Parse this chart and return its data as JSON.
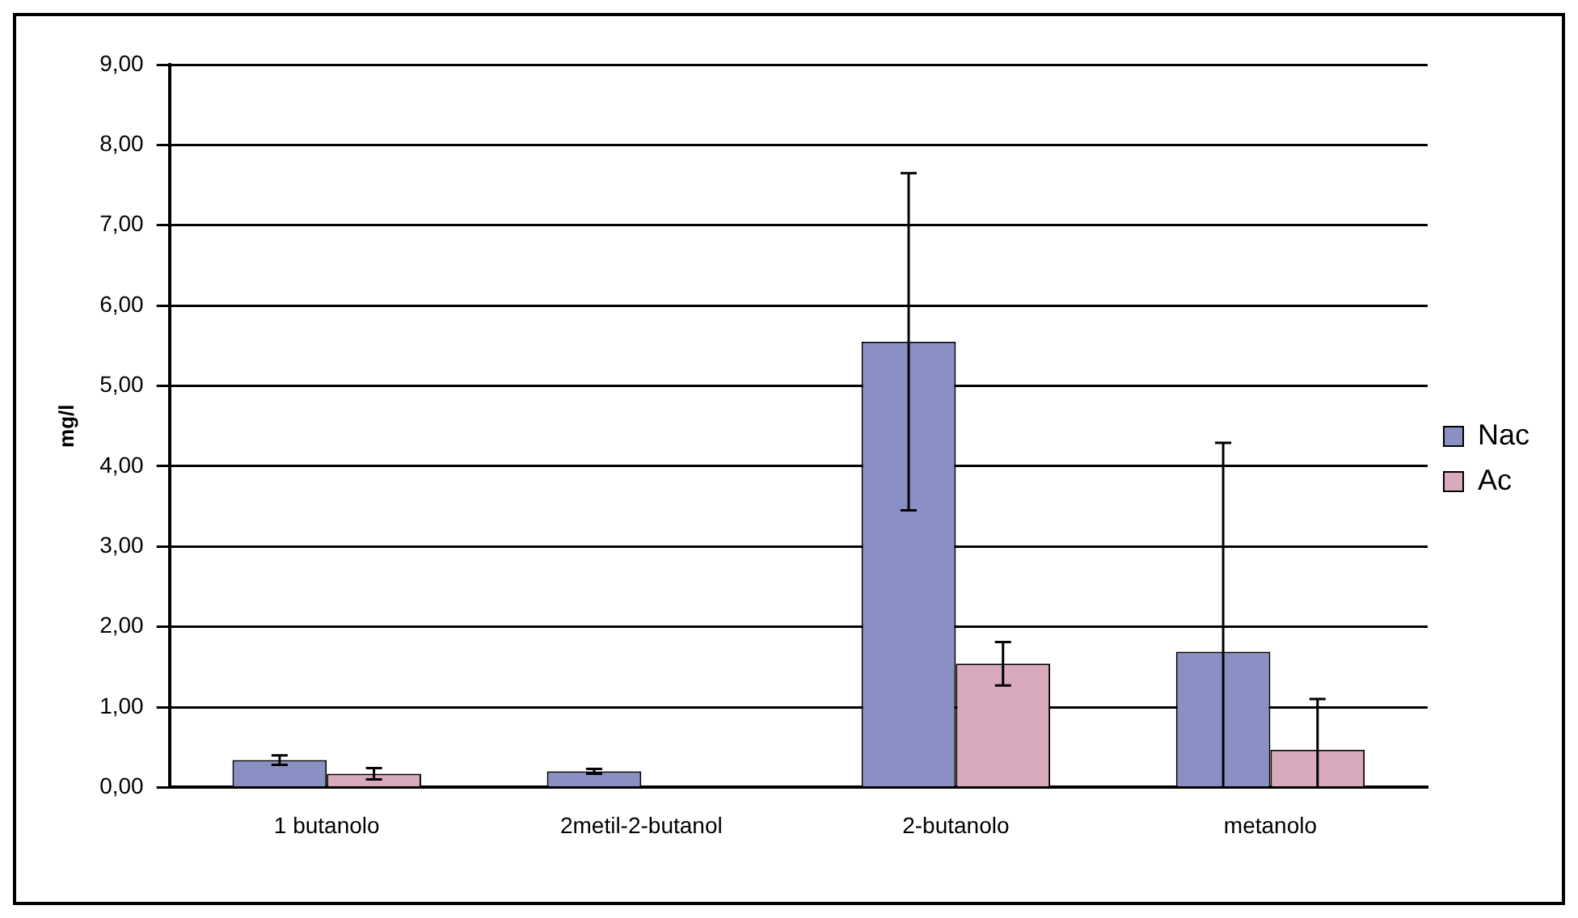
{
  "chart_data": {
    "type": "bar",
    "ylabel": "mg/l",
    "categories": [
      "1 butanolo",
      "2metil-2-butanol",
      "2-butanolo",
      "metanolo"
    ],
    "series": [
      {
        "name": "Nac",
        "color": "#8a8fc4",
        "values": [
          0.34,
          0.2,
          5.55,
          1.69
        ],
        "errors": [
          0.06,
          0.03,
          2.1,
          [
            0,
            4.29
          ]
        ]
      },
      {
        "name": "Ac",
        "color": "#d9a9bd",
        "values": [
          0.17,
          null,
          1.54,
          0.47
        ],
        "errors": [
          0.07,
          null,
          0.27,
          [
            0,
            1.1
          ]
        ]
      }
    ],
    "ylim": [
      0,
      9
    ],
    "yticks": [
      {
        "value": 0,
        "label": "0,00"
      },
      {
        "value": 1,
        "label": "1,00"
      },
      {
        "value": 2,
        "label": "2,00"
      },
      {
        "value": 3,
        "label": "3,00"
      },
      {
        "value": 4,
        "label": "4,00"
      },
      {
        "value": 5,
        "label": "5,00"
      },
      {
        "value": 6,
        "label": "6,00"
      },
      {
        "value": 7,
        "label": "7,00"
      },
      {
        "value": 8,
        "label": "8,00"
      },
      {
        "value": 9,
        "label": "9,00"
      }
    ],
    "grid": "y",
    "legend": "right"
  }
}
